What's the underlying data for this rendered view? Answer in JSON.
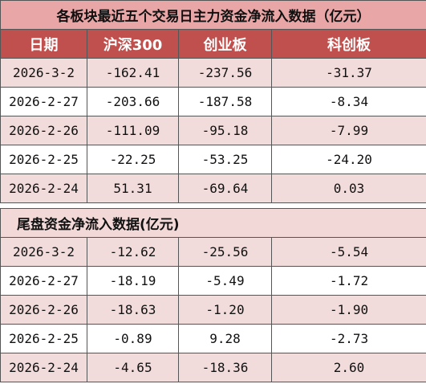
{
  "table1": {
    "title": "各板块最近五个交易日主力资金净流入数据（亿元）",
    "header": [
      "日期",
      "沪深300",
      "创业板",
      "科创板"
    ],
    "rows": [
      [
        "2026-3-2",
        "-162.41",
        "-237.56",
        "-31.37"
      ],
      [
        "2026-2-27",
        "-203.66",
        "-187.58",
        "-8.34"
      ],
      [
        "2026-2-26",
        "-111.09",
        "-95.18",
        "-7.99"
      ],
      [
        "2026-2-25",
        "-22.25",
        "-53.25",
        "-24.20"
      ],
      [
        "2026-2-24",
        "51.31",
        "-69.64",
        "0.03"
      ]
    ]
  },
  "table2": {
    "title": "尾盘资金净流入数据(亿元)",
    "rows": [
      [
        "2026-3-2",
        "-12.62",
        "-25.56",
        "-5.54"
      ],
      [
        "2026-2-27",
        "-18.19",
        "-5.49",
        "-1.72"
      ],
      [
        "2026-2-26",
        "-18.63",
        "-1.20",
        "-1.90"
      ],
      [
        "2026-2-25",
        "-0.89",
        "9.28",
        "-2.73"
      ],
      [
        "2026-2-24",
        "-4.65",
        "-18.36",
        "2.60"
      ]
    ]
  }
}
